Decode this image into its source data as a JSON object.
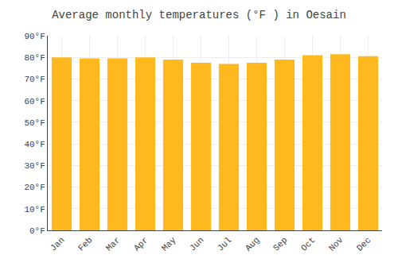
{
  "chart_data": {
    "type": "bar",
    "title": "Average monthly temperatures (°F ) in Oesain",
    "categories": [
      "Jan",
      "Feb",
      "Mar",
      "Apr",
      "May",
      "Jun",
      "Jul",
      "Aug",
      "Sep",
      "Oct",
      "Nov",
      "Dec"
    ],
    "values": [
      80,
      79.5,
      79.5,
      80,
      79,
      77.5,
      77,
      77.5,
      79,
      81,
      81.5,
      80.5
    ],
    "color": "#FFB91E",
    "ylim": [
      0,
      90
    ],
    "yticks": [
      {
        "value": 0,
        "label": "0°F"
      },
      {
        "value": 10,
        "label": "10°F"
      },
      {
        "value": 20,
        "label": "20°F"
      },
      {
        "value": 30,
        "label": "30°F"
      },
      {
        "value": 40,
        "label": "40°F"
      },
      {
        "value": 50,
        "label": "50°F"
      },
      {
        "value": 60,
        "label": "60°F"
      },
      {
        "value": 70,
        "label": "70°F"
      },
      {
        "value": 80,
        "label": "80°F"
      },
      {
        "value": 90,
        "label": "90°F"
      }
    ],
    "grid": true
  }
}
